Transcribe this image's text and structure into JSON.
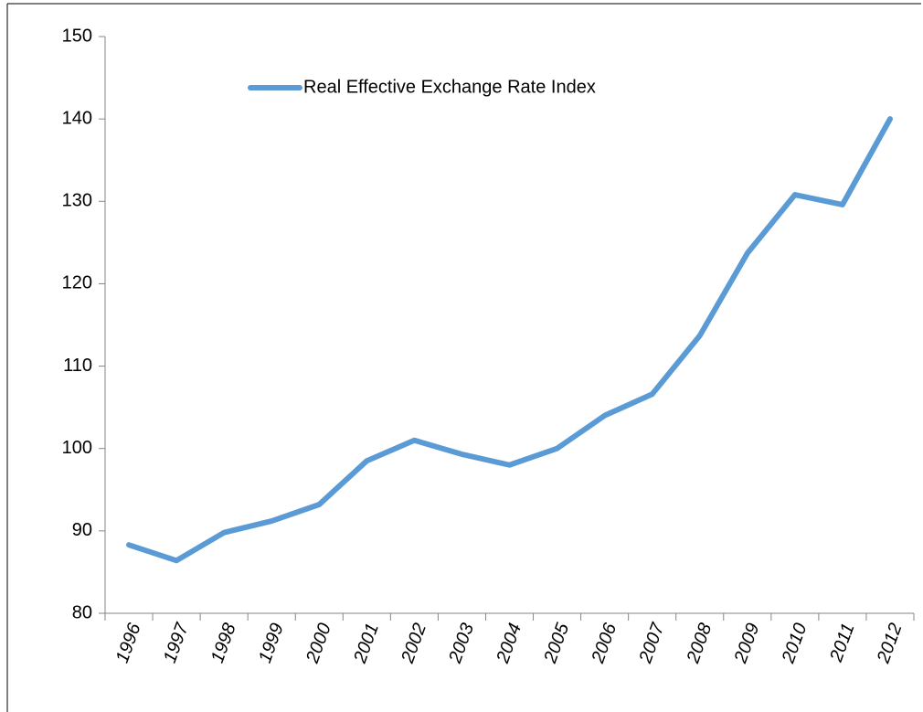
{
  "chart_data": {
    "type": "line",
    "categories": [
      "1996",
      "1997",
      "1998",
      "1999",
      "2000",
      "2001",
      "2002",
      "2003",
      "2004",
      "2005",
      "2006",
      "2007",
      "2008",
      "2009",
      "2010",
      "2011",
      "2012"
    ],
    "series": [
      {
        "name": "Real Effective Exchange Rate Index",
        "color": "#5b9bd5",
        "values": [
          88.3,
          86.4,
          89.8,
          91.2,
          93.2,
          98.5,
          101,
          99.3,
          98.0,
          100,
          104,
          106.6,
          113.7,
          123.7,
          130.8,
          129.6,
          140
        ]
      }
    ],
    "ylim": [
      80,
      150
    ],
    "yticks": [
      80,
      90,
      100,
      110,
      120,
      130,
      140,
      150
    ],
    "grid": false,
    "legend": "top"
  }
}
